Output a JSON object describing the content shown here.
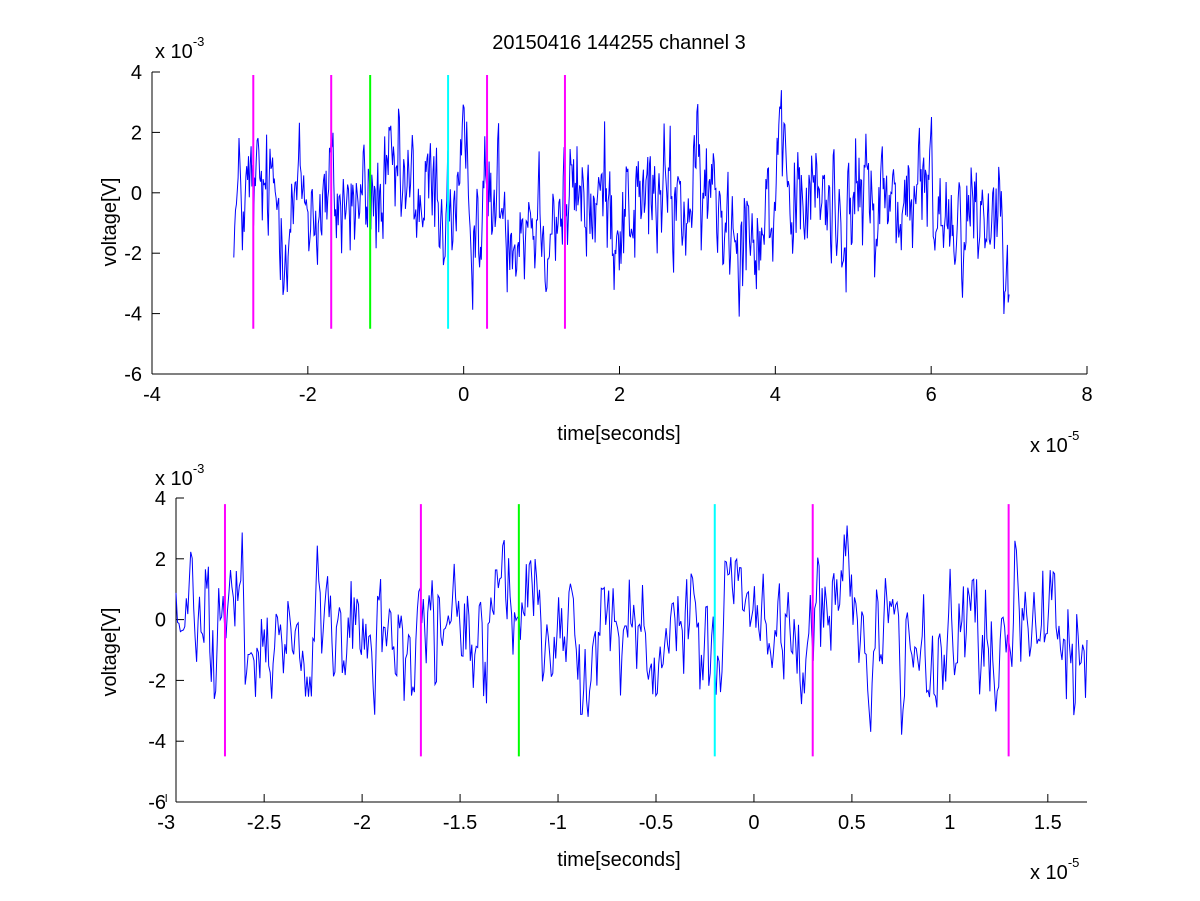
{
  "chart_data": [
    {
      "type": "line",
      "title": "20150416 144255 channel 3",
      "xlabel": "time[seconds]",
      "ylabel": "voltage[V]",
      "x_multiplier": {
        "base": "x 10",
        "exponent": "-5"
      },
      "y_multiplier": {
        "base": "x 10",
        "exponent": "-3"
      },
      "xlim": [
        -4,
        8
      ],
      "ylim": [
        -6,
        4
      ],
      "x_ticks": [
        "-4",
        "-2",
        "0",
        "2",
        "4",
        "6",
        "8"
      ],
      "y_ticks": [
        "-6",
        "-4",
        "-2",
        "0",
        "2",
        "4"
      ],
      "signal": {
        "color": "#0000ff",
        "x_range": [
          -2.95,
          7.0
        ]
      },
      "markers": [
        {
          "x": -2.7,
          "y_range": [
            -4.5,
            3.9
          ],
          "color": "#ff00ff"
        },
        {
          "x": -1.7,
          "y_range": [
            -4.5,
            3.9
          ],
          "color": "#ff00ff"
        },
        {
          "x": -1.2,
          "y_range": [
            -4.5,
            3.9
          ],
          "color": "#00ff00"
        },
        {
          "x": -0.2,
          "y_range": [
            -4.5,
            3.9
          ],
          "color": "#00ffff"
        },
        {
          "x": 0.3,
          "y_range": [
            -4.5,
            3.9
          ],
          "color": "#ff00ff"
        },
        {
          "x": 1.3,
          "y_range": [
            -4.5,
            3.9
          ],
          "color": "#ff00ff"
        }
      ],
      "grid": false,
      "legend": "none"
    },
    {
      "type": "line",
      "title": "",
      "xlabel": "time[seconds]",
      "ylabel": "voltage[V]",
      "x_multiplier": {
        "base": "x 10",
        "exponent": "-5"
      },
      "y_multiplier": {
        "base": "x 10",
        "exponent": "-3"
      },
      "xlim": [
        -2.95,
        1.7
      ],
      "ylim": [
        -6,
        4
      ],
      "x_ticks": [
        "-3",
        "-2.5",
        "-2",
        "-1.5",
        "-1",
        "-0.5",
        "0",
        "0.5",
        "1",
        "1.5"
      ],
      "y_ticks": [
        "-6",
        "-4",
        "-2",
        "0",
        "2",
        "4"
      ],
      "signal": {
        "color": "#0000ff",
        "x_range": [
          -2.95,
          1.7
        ]
      },
      "markers": [
        {
          "x": -2.7,
          "y_range": [
            -4.5,
            3.8
          ],
          "color": "#ff00ff"
        },
        {
          "x": -1.7,
          "y_range": [
            -4.5,
            3.8
          ],
          "color": "#ff00ff"
        },
        {
          "x": -1.2,
          "y_range": [
            -4.5,
            3.8
          ],
          "color": "#00ff00"
        },
        {
          "x": -0.2,
          "y_range": [
            -4.5,
            3.8
          ],
          "color": "#00ffff"
        },
        {
          "x": 0.3,
          "y_range": [
            -4.5,
            3.8
          ],
          "color": "#ff00ff"
        },
        {
          "x": 1.3,
          "y_range": [
            -4.5,
            3.8
          ],
          "color": "#ff00ff"
        }
      ],
      "grid": false,
      "legend": "none"
    }
  ]
}
